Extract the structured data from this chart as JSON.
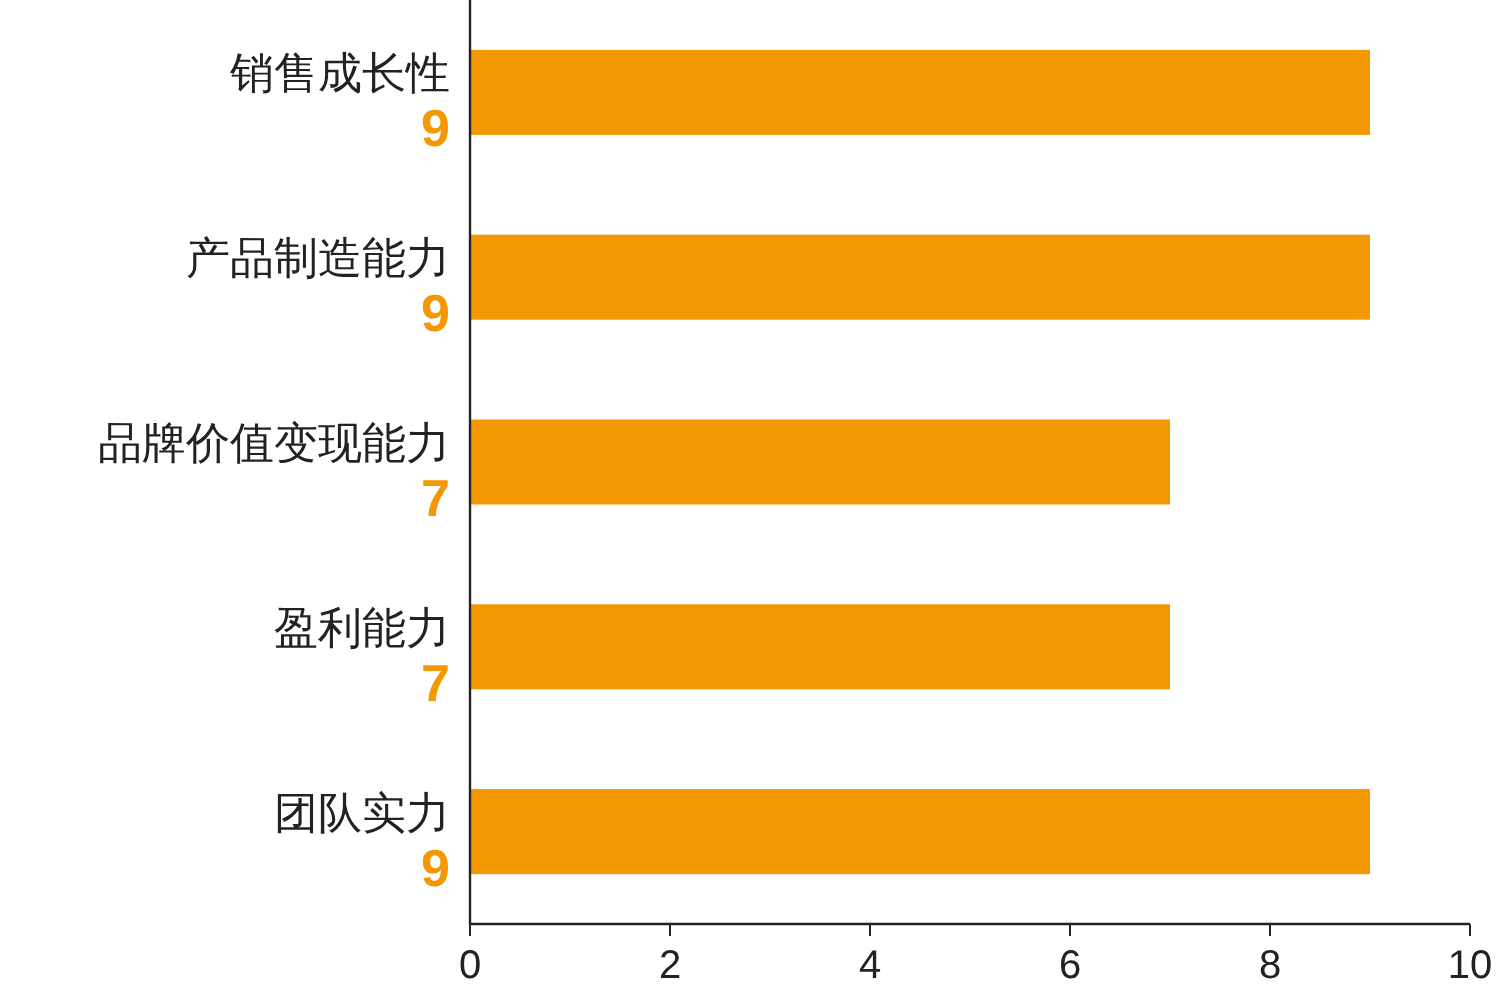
{
  "chart_data": {
    "type": "bar",
    "orientation": "horizontal",
    "categories": [
      "销售成长性",
      "产品制造能力",
      "品牌价值变现能力",
      "盈利能力",
      "团队实力"
    ],
    "values": [
      9,
      9,
      7,
      7,
      9
    ],
    "color": "#f39800",
    "data_labels": true,
    "xlim": [
      0,
      10
    ],
    "xticks": [
      0,
      2,
      4,
      6,
      8,
      10
    ],
    "grid": false
  }
}
